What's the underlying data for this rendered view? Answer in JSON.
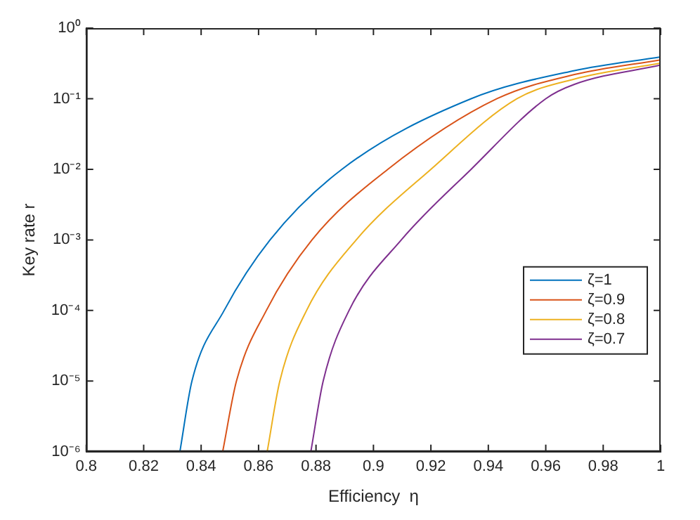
{
  "chart_data": {
    "type": "line",
    "xlabel": "Efficiency  η",
    "ylabel": "Key rate r",
    "log": "y",
    "grid": false,
    "legend": "bottom right",
    "marker": "none",
    "line_style": "solid",
    "xlim": [
      0.8,
      1
    ],
    "xticks": [
      0.8,
      0.82,
      0.84,
      0.86,
      0.88,
      0.9,
      0.92,
      0.94,
      0.96,
      0.98,
      1
    ],
    "ylim": [
      1e-06,
      1
    ],
    "yticks": [
      {
        "value": 1e-06,
        "label": "10⁻⁶"
      },
      {
        "value": 1e-05,
        "label": "10⁻⁵"
      },
      {
        "value": 0.0001,
        "label": "10⁻⁴"
      },
      {
        "value": 0.001,
        "label": "10⁻³"
      },
      {
        "value": 0.01,
        "label": "10⁻²"
      },
      {
        "value": 0.1,
        "label": "10⁻¹"
      },
      {
        "value": 1,
        "label": "10⁰"
      }
    ],
    "series": [
      {
        "name": "ζ=1",
        "color": "#0072bd",
        "x": [
          0.8326,
          0.8368,
          0.848,
          0.864,
          0.889,
          0.934,
          0.97,
          1
        ],
        "values": [
          1e-06,
          1e-05,
          0.0001,
          0.001,
          0.01,
          0.1,
          0.25,
          0.39
        ]
      },
      {
        "name": "ζ=0.9",
        "color": "#d95319",
        "x": [
          0.8475,
          0.8523,
          0.8627,
          0.8786,
          0.905,
          0.943,
          0.97,
          1
        ],
        "values": [
          1e-06,
          1e-05,
          0.0001,
          0.001,
          0.01,
          0.1,
          0.22,
          0.355
        ]
      },
      {
        "name": "ζ=0.8",
        "color": "#edb120",
        "x": [
          0.863,
          0.8674,
          0.8767,
          0.894,
          0.92,
          0.95,
          0.97,
          1
        ],
        "values": [
          1e-06,
          1e-05,
          0.0001,
          0.001,
          0.01,
          0.1,
          0.19,
          0.32
        ]
      },
      {
        "name": "ζ=0.7",
        "color": "#7e2f8e",
        "x": [
          0.8782,
          0.8825,
          0.8915,
          0.9097,
          0.934,
          0.96,
          0.97,
          1
        ],
        "values": [
          1e-06,
          1e-05,
          0.0001,
          0.001,
          0.01,
          0.1,
          0.16,
          0.3
        ]
      }
    ]
  }
}
